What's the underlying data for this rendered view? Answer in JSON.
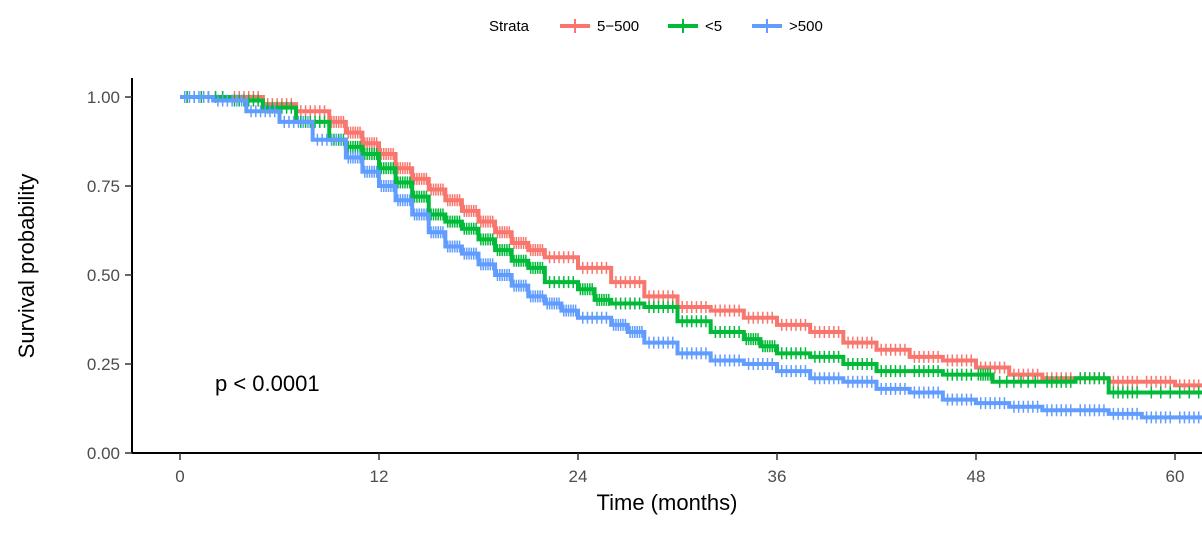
{
  "chart_data": {
    "type": "line",
    "subtype": "kaplan-meier step",
    "xlabel": "Time (months)",
    "ylabel": "Survival probability",
    "xlim": [
      0,
      62
    ],
    "ylim": [
      0,
      1
    ],
    "x_ticks": [
      0,
      12,
      24,
      36,
      48,
      60
    ],
    "x_tick_labels": [
      "0",
      "12",
      "24",
      "36",
      "48",
      "60"
    ],
    "y_ticks": [
      0,
      0.25,
      0.5,
      0.75,
      1.0
    ],
    "y_tick_labels": [
      "0.00",
      "0.25",
      "0.50",
      "0.75",
      "1.00"
    ],
    "grid": false,
    "legend": {
      "title": "Strata",
      "position": "top",
      "entries": [
        "5−500",
        "<5",
        ">500"
      ]
    },
    "annotation": "p < 0.0001",
    "series": [
      {
        "name": "5−500",
        "color": "#F8766D",
        "points": [
          [
            0,
            1.0
          ],
          [
            3,
            1.0
          ],
          [
            5,
            0.98
          ],
          [
            7,
            0.96
          ],
          [
            9,
            0.93
          ],
          [
            10,
            0.9
          ],
          [
            11,
            0.87
          ],
          [
            12,
            0.84
          ],
          [
            13,
            0.8
          ],
          [
            14,
            0.77
          ],
          [
            15,
            0.74
          ],
          [
            16,
            0.71
          ],
          [
            17,
            0.68
          ],
          [
            18,
            0.65
          ],
          [
            19,
            0.62
          ],
          [
            20,
            0.59
          ],
          [
            21,
            0.57
          ],
          [
            22,
            0.55
          ],
          [
            24,
            0.52
          ],
          [
            26,
            0.48
          ],
          [
            28,
            0.44
          ],
          [
            30,
            0.41
          ],
          [
            32,
            0.4
          ],
          [
            34,
            0.38
          ],
          [
            36,
            0.36
          ],
          [
            38,
            0.34
          ],
          [
            40,
            0.31
          ],
          [
            42,
            0.29
          ],
          [
            44,
            0.27
          ],
          [
            46,
            0.26
          ],
          [
            48,
            0.24
          ],
          [
            50,
            0.22
          ],
          [
            52,
            0.21
          ],
          [
            54,
            0.21
          ],
          [
            56,
            0.2
          ],
          [
            58,
            0.2
          ],
          [
            60,
            0.19
          ],
          [
            62,
            0.18
          ]
        ]
      },
      {
        "name": "<5",
        "color": "#00BA38",
        "points": [
          [
            0,
            1.0
          ],
          [
            3,
            0.99
          ],
          [
            5,
            0.97
          ],
          [
            7,
            0.93
          ],
          [
            9,
            0.88
          ],
          [
            10,
            0.86
          ],
          [
            11,
            0.84
          ],
          [
            12,
            0.8
          ],
          [
            13,
            0.76
          ],
          [
            14,
            0.72
          ],
          [
            15,
            0.67
          ],
          [
            16,
            0.65
          ],
          [
            17,
            0.63
          ],
          [
            18,
            0.6
          ],
          [
            19,
            0.57
          ],
          [
            20,
            0.54
          ],
          [
            21,
            0.52
          ],
          [
            22,
            0.48
          ],
          [
            24,
            0.46
          ],
          [
            25,
            0.43
          ],
          [
            26,
            0.42
          ],
          [
            28,
            0.41
          ],
          [
            30,
            0.37
          ],
          [
            32,
            0.34
          ],
          [
            34,
            0.32
          ],
          [
            35,
            0.3
          ],
          [
            36,
            0.28
          ],
          [
            38,
            0.27
          ],
          [
            40,
            0.25
          ],
          [
            42,
            0.23
          ],
          [
            44,
            0.23
          ],
          [
            46,
            0.22
          ],
          [
            48,
            0.22
          ],
          [
            49,
            0.2
          ],
          [
            52,
            0.2
          ],
          [
            54,
            0.21
          ],
          [
            56,
            0.17
          ],
          [
            58,
            0.17
          ],
          [
            62,
            0.17
          ]
        ]
      },
      {
        "name": ">500",
        "color": "#619CFF",
        "points": [
          [
            0,
            1.0
          ],
          [
            2,
            0.99
          ],
          [
            4,
            0.96
          ],
          [
            6,
            0.93
          ],
          [
            8,
            0.88
          ],
          [
            10,
            0.83
          ],
          [
            11,
            0.79
          ],
          [
            12,
            0.75
          ],
          [
            13,
            0.71
          ],
          [
            14,
            0.67
          ],
          [
            15,
            0.62
          ],
          [
            16,
            0.58
          ],
          [
            17,
            0.56
          ],
          [
            18,
            0.53
          ],
          [
            19,
            0.5
          ],
          [
            20,
            0.47
          ],
          [
            21,
            0.44
          ],
          [
            22,
            0.42
          ],
          [
            23,
            0.4
          ],
          [
            24,
            0.38
          ],
          [
            26,
            0.36
          ],
          [
            27,
            0.34
          ],
          [
            28,
            0.31
          ],
          [
            30,
            0.28
          ],
          [
            32,
            0.26
          ],
          [
            34,
            0.25
          ],
          [
            36,
            0.23
          ],
          [
            38,
            0.21
          ],
          [
            40,
            0.2
          ],
          [
            42,
            0.18
          ],
          [
            44,
            0.17
          ],
          [
            46,
            0.15
          ],
          [
            48,
            0.14
          ],
          [
            50,
            0.13
          ],
          [
            52,
            0.12
          ],
          [
            54,
            0.12
          ],
          [
            56,
            0.11
          ],
          [
            58,
            0.1
          ],
          [
            60,
            0.1
          ],
          [
            62,
            0.09
          ]
        ]
      }
    ]
  }
}
